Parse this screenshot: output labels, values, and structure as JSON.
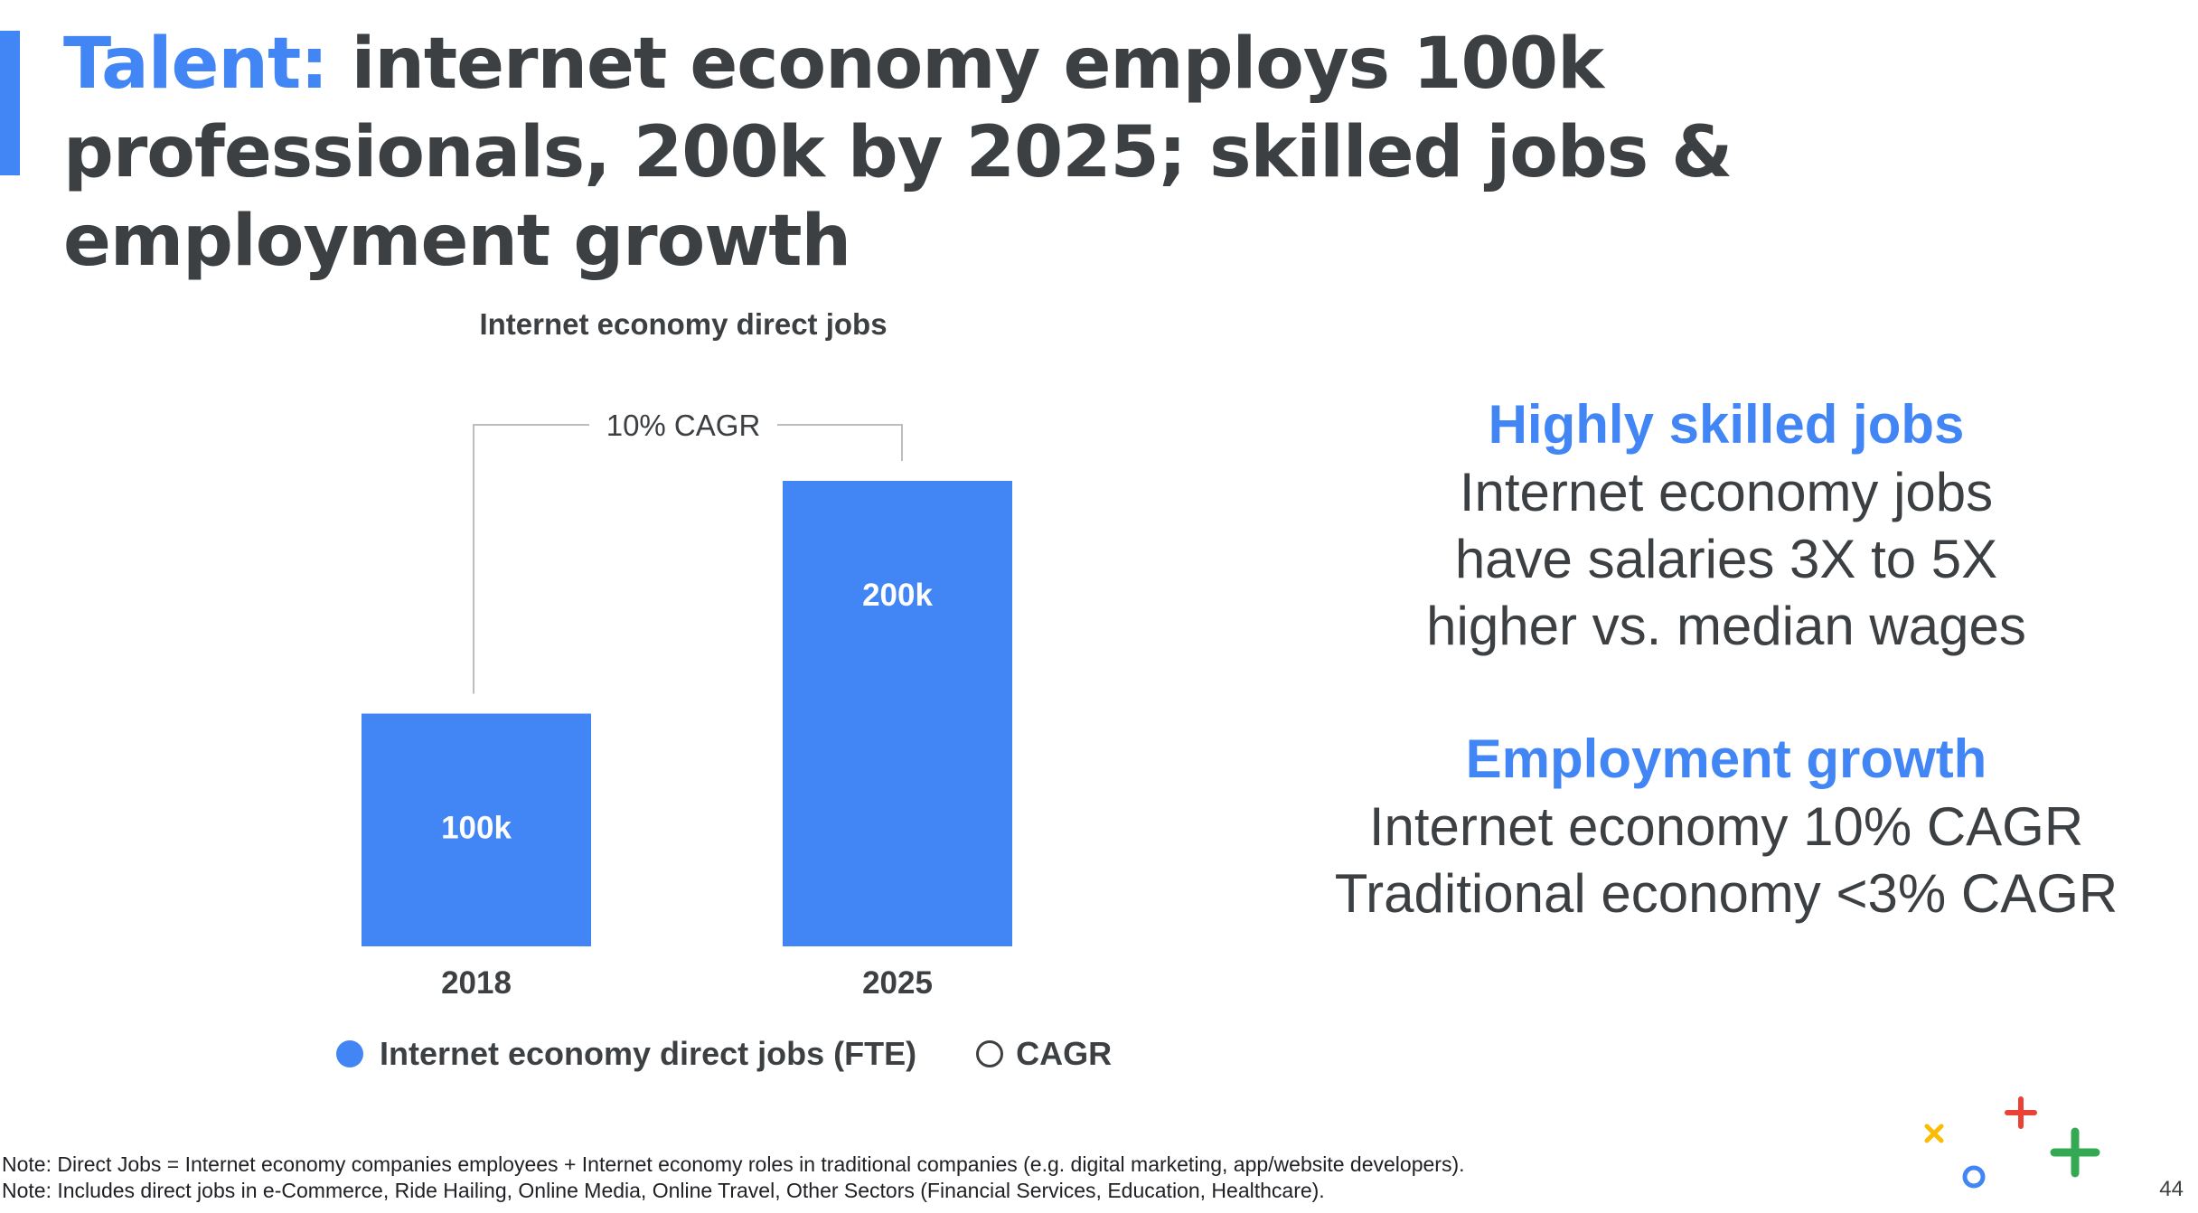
{
  "slide": {
    "title_highlight": "Talent:",
    "title_rest": " internet economy employs 100k professionals, 200k by 2025; skilled jobs & employment growth",
    "page_number": "44"
  },
  "colors": {
    "accent": "#4285f4",
    "text": "#3c4043",
    "bracket": "#bdbdbd"
  },
  "chart_data": {
    "type": "bar",
    "title": "Internet economy direct jobs",
    "categories": [
      "2018",
      "2025"
    ],
    "series": [
      {
        "name": "Internet economy direct jobs (FTE)",
        "values": [
          100,
          200
        ],
        "labels": [
          "100k",
          "200k"
        ]
      }
    ],
    "annotation": "10% CAGR",
    "legend": [
      "Internet economy direct jobs (FTE)",
      "CAGR"
    ],
    "legend_position": "bottom",
    "grid": false
  },
  "highlights": [
    {
      "heading": "Highly skilled jobs",
      "lines": [
        "Internet economy jobs",
        "have salaries 3X to 5X",
        "higher vs. median wages"
      ]
    },
    {
      "heading": "Employment growth",
      "lines": [
        "Internet economy 10% CAGR",
        "Traditional economy <3% CAGR"
      ]
    }
  ],
  "notes": [
    "Note: Direct Jobs = Internet economy companies employees + Internet economy roles in traditional companies (e.g. digital marketing, app/website developers).",
    "Note: Includes direct jobs in  e-Commerce, Ride Hailing, Online Media, Online Travel, Other Sectors (Financial Services, Education, Healthcare)."
  ],
  "decor_icons": [
    "yellow-x-icon",
    "red-plus-icon",
    "blue-circle-icon",
    "green-plus-icon"
  ]
}
